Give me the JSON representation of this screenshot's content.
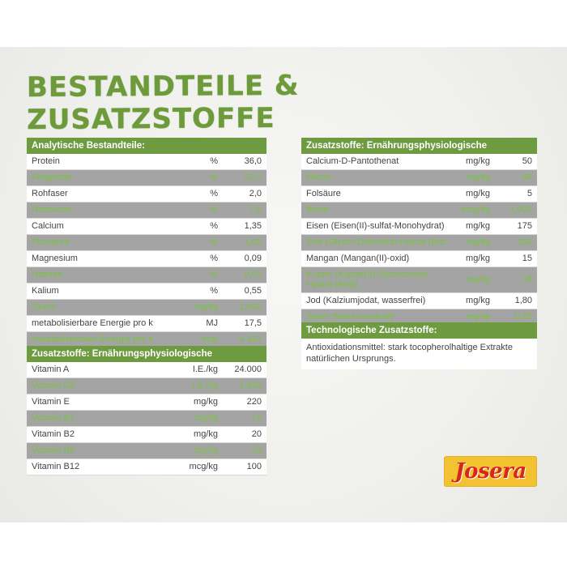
{
  "title": "BESTANDTEILE & ZUSATZSTOFFE",
  "analytic": {
    "header": "Analytische Bestandteile:",
    "rows": [
      {
        "name": "Protein",
        "unit": "%",
        "value": "36,0"
      },
      {
        "name": "Fettgehalt",
        "unit": "%",
        "value": "22,0"
      },
      {
        "name": "Rohfaser",
        "unit": "%",
        "value": "2,0"
      },
      {
        "name": "Rohasche",
        "unit": "%",
        "value": "7,0"
      },
      {
        "name": "Calcium",
        "unit": "%",
        "value": "1,35"
      },
      {
        "name": "Phosphor",
        "unit": "%",
        "value": "1,05"
      },
      {
        "name": "Magnesium",
        "unit": "%",
        "value": "0,09"
      },
      {
        "name": "Natrium",
        "unit": "%",
        "value": "0,50"
      },
      {
        "name": "Kalium",
        "unit": "%",
        "value": "0,55"
      },
      {
        "name": "Taurin",
        "unit": "mg/kg",
        "value": "1.600"
      },
      {
        "name": "metabolisierbare Energie pro kg",
        "unit": "MJ",
        "value": "17,5"
      },
      {
        "name": "metabolisierbare Energie pro kg",
        "unit": "kcal",
        "value": "4.181"
      }
    ]
  },
  "vitamins": {
    "header": "Zusatzstoffe: Ernährungsphysiologische Zusatzstoffe je kg:",
    "rows": [
      {
        "name": "Vitamin A",
        "unit": "I.E./kg",
        "value": "24.000"
      },
      {
        "name": "Vitamin D3",
        "unit": "I.E./kg",
        "value": "1.800"
      },
      {
        "name": "Vitamin E",
        "unit": "mg/kg",
        "value": "220"
      },
      {
        "name": "Vitamin B1",
        "unit": "mg/kg",
        "value": "15"
      },
      {
        "name": "Vitamin B2",
        "unit": "mg/kg",
        "value": "20"
      },
      {
        "name": "Vitamin B6",
        "unit": "mg/kg",
        "value": "20"
      },
      {
        "name": "Vitamin B12",
        "unit": "mcg/kg",
        "value": "100"
      }
    ]
  },
  "minerals": {
    "header": "Zusatzstoffe: Ernährungsphysiologische Zusatzstoffe je kg:",
    "rows": [
      {
        "name": "Calcium-D-Pantothenat",
        "unit": "mg/kg",
        "value": "50"
      },
      {
        "name": "Niacin",
        "unit": "mg/kg",
        "value": "90"
      },
      {
        "name": "Folsäure",
        "unit": "mg/kg",
        "value": "5"
      },
      {
        "name": "Biotin",
        "unit": "mcg/kg",
        "value": "1.000"
      },
      {
        "name": "Eisen (Eisen(II)-sulfat-Monohydrat)",
        "unit": "mg/kg",
        "value": "175"
      },
      {
        "name": "Zink (Glycin-Zinkchelat-Hydrat (fest))",
        "unit": "mg/kg",
        "value": "150"
      },
      {
        "name": "Mangan (Mangan(II)-oxid)",
        "unit": "mg/kg",
        "value": "15"
      },
      {
        "name": "Kupfer (Kupfer(II)-Glycinchelat-Hydrat (fest))",
        "unit": "mg/kg",
        "value": "18"
      },
      {
        "name": "Jod (Kalziumjodat, wasserfrei)",
        "unit": "mg/kg",
        "value": "1,80"
      },
      {
        "name": "Selen (Natriumselenit)",
        "unit": "mg/kg",
        "value": "0,25"
      }
    ]
  },
  "technological": {
    "header": "Technologische Zusatzstoffe:",
    "text": "Antioxidationsmittel: stark tocopherolhaltige Extrakte natürlichen Ursprungs."
  },
  "logo": {
    "text": "Josera"
  },
  "colors": {
    "brand_green": "#6e9a40",
    "highlight_green": "#7bc143",
    "logo_yellow": "#f2c230",
    "logo_red": "#d8261c"
  }
}
